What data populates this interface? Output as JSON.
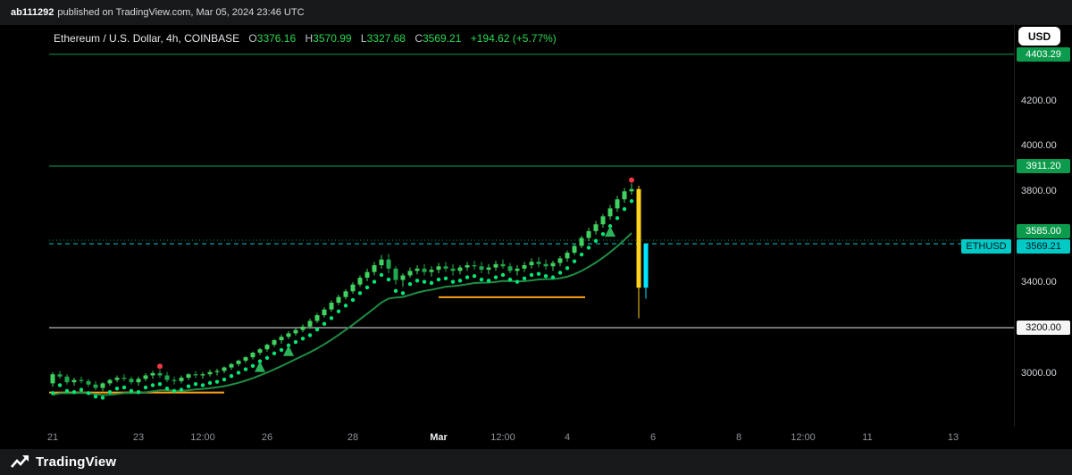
{
  "attribution": {
    "user": "ab111292",
    "text": "published on TradingView.com, Mar 05, 2024 23:46 UTC"
  },
  "header": {
    "currency_button": "USD"
  },
  "legend": {
    "symbol": "Ethereum / U.S. Dollar, 4h, COINBASE",
    "o_label": "O",
    "o": "3376.16",
    "h_label": "H",
    "h": "3570.99",
    "l_label": "L",
    "l": "3327.68",
    "c_label": "C",
    "c": "3569.21",
    "change": "+194.62 (+5.77%)"
  },
  "footer": {
    "brand": "TradingView"
  },
  "chart_data": {
    "type": "candlestick",
    "symbol": "Ethereum / U.S. Dollar",
    "ticker": "ETHUSD",
    "interval": "4h",
    "exchange": "COINBASE",
    "ohlc_display": {
      "open": 3376.16,
      "high": 3570.99,
      "low": 3327.68,
      "close": 3569.21,
      "change": 194.62,
      "change_pct": 5.77
    },
    "ylim": [
      2764,
      4532
    ],
    "colors": {
      "candle_up": "#3fd25f",
      "candle_down": "#1fa94e",
      "accent_green": "#0c9b4c",
      "accent_teal": "#00c9c6",
      "accent_yellow": "#ffd21e",
      "accent_orange": "#ff9f1a",
      "accent_red": "#f23645",
      "dot_green": "#00e676",
      "ma_green": "#1f8c44"
    },
    "candles": [
      [
        2955,
        3005,
        2940,
        2995
      ],
      [
        2995,
        3010,
        2975,
        2985
      ],
      [
        2985,
        2995,
        2950,
        2960
      ],
      [
        2960,
        2980,
        2945,
        2970
      ],
      [
        2970,
        2985,
        2955,
        2965
      ],
      [
        2965,
        2975,
        2940,
        2950
      ],
      [
        2950,
        2965,
        2925,
        2935
      ],
      [
        2935,
        2960,
        2920,
        2955
      ],
      [
        2955,
        2975,
        2945,
        2970
      ],
      [
        2970,
        2990,
        2960,
        2980
      ],
      [
        2980,
        2995,
        2965,
        2975
      ],
      [
        2975,
        2985,
        2950,
        2960
      ],
      [
        2960,
        2985,
        2945,
        2975
      ],
      [
        2975,
        3000,
        2965,
        2990
      ],
      [
        2990,
        3010,
        2975,
        3000
      ],
      [
        3000,
        3015,
        2980,
        2990
      ],
      [
        2990,
        3005,
        2960,
        2970
      ],
      [
        2970,
        2985,
        2950,
        2965
      ],
      [
        2965,
        2990,
        2955,
        2980
      ],
      [
        2980,
        3000,
        2970,
        2995
      ],
      [
        2995,
        3010,
        2980,
        2990
      ],
      [
        2990,
        3005,
        2975,
        2995
      ],
      [
        2995,
        3015,
        2985,
        3005
      ],
      [
        3005,
        3020,
        2990,
        3010
      ],
      [
        3010,
        3030,
        3000,
        3025
      ],
      [
        3025,
        3045,
        3015,
        3040
      ],
      [
        3040,
        3060,
        3030,
        3055
      ],
      [
        3055,
        3075,
        3045,
        3070
      ],
      [
        3070,
        3095,
        3060,
        3090
      ],
      [
        3090,
        3110,
        3080,
        3105
      ],
      [
        3105,
        3130,
        3095,
        3125
      ],
      [
        3125,
        3150,
        3115,
        3145
      ],
      [
        3145,
        3170,
        3130,
        3160
      ],
      [
        3160,
        3185,
        3150,
        3175
      ],
      [
        3175,
        3200,
        3165,
        3190
      ],
      [
        3190,
        3215,
        3180,
        3205
      ],
      [
        3205,
        3240,
        3195,
        3230
      ],
      [
        3230,
        3265,
        3220,
        3255
      ],
      [
        3255,
        3290,
        3245,
        3280
      ],
      [
        3280,
        3320,
        3270,
        3310
      ],
      [
        3310,
        3345,
        3300,
        3335
      ],
      [
        3335,
        3370,
        3325,
        3360
      ],
      [
        3360,
        3400,
        3350,
        3390
      ],
      [
        3390,
        3430,
        3380,
        3420
      ],
      [
        3420,
        3460,
        3405,
        3445
      ],
      [
        3445,
        3490,
        3430,
        3475
      ],
      [
        3475,
        3520,
        3460,
        3500
      ],
      [
        3500,
        3525,
        3440,
        3460
      ],
      [
        3460,
        3470,
        3390,
        3410
      ],
      [
        3410,
        3440,
        3380,
        3430
      ],
      [
        3430,
        3465,
        3420,
        3450
      ],
      [
        3450,
        3475,
        3435,
        3460
      ],
      [
        3460,
        3480,
        3430,
        3445
      ],
      [
        3445,
        3470,
        3425,
        3455
      ],
      [
        3455,
        3485,
        3440,
        3470
      ],
      [
        3470,
        3490,
        3445,
        3460
      ],
      [
        3460,
        3480,
        3430,
        3450
      ],
      [
        3450,
        3475,
        3435,
        3465
      ],
      [
        3465,
        3490,
        3450,
        3475
      ],
      [
        3475,
        3495,
        3455,
        3470
      ],
      [
        3470,
        3490,
        3440,
        3455
      ],
      [
        3455,
        3480,
        3435,
        3465
      ],
      [
        3465,
        3495,
        3450,
        3480
      ],
      [
        3480,
        3500,
        3460,
        3470
      ],
      [
        3470,
        3485,
        3440,
        3450
      ],
      [
        3450,
        3475,
        3430,
        3460
      ],
      [
        3460,
        3490,
        3445,
        3475
      ],
      [
        3475,
        3505,
        3460,
        3490
      ],
      [
        3490,
        3510,
        3465,
        3480
      ],
      [
        3480,
        3500,
        3455,
        3470
      ],
      [
        3470,
        3495,
        3450,
        3485
      ],
      [
        3485,
        3515,
        3470,
        3505
      ],
      [
        3505,
        3540,
        3490,
        3530
      ],
      [
        3530,
        3570,
        3520,
        3560
      ],
      [
        3560,
        3605,
        3550,
        3595
      ],
      [
        3595,
        3640,
        3580,
        3625
      ],
      [
        3625,
        3670,
        3610,
        3655
      ],
      [
        3655,
        3700,
        3640,
        3690
      ],
      [
        3690,
        3740,
        3675,
        3725
      ],
      [
        3725,
        3780,
        3710,
        3765
      ],
      [
        3765,
        3815,
        3750,
        3800
      ],
      [
        3800,
        3835,
        3785,
        3810
      ],
      [
        3810,
        3825,
        3242,
        3376
      ],
      [
        3376.16,
        3570.99,
        3327.68,
        3569.21
      ]
    ],
    "candle_overrides": {
      "82": "#ffd21e",
      "83": "#00e5ff"
    },
    "markers": {
      "triangles_up": [
        29,
        33,
        78
      ],
      "triangle_offset": 55,
      "red_dots": [
        15,
        81
      ],
      "red_dot_offset": 15
    },
    "indicators": {
      "trail_dots": {
        "offset": 28,
        "color": "#00e676"
      },
      "ma": {
        "period": 10,
        "source_offset": 35,
        "color": "#1f8c44"
      }
    },
    "levels": [
      {
        "price": 4403.29,
        "style": "solid",
        "color": "#0c9b4c"
      },
      {
        "price": 3911.2,
        "style": "solid",
        "color": "#0c9b4c"
      },
      {
        "price": 3585.0,
        "style": "dotted",
        "color": "#0c9b4c"
      },
      {
        "price": 3569.21,
        "style": "dashed",
        "color": "#00c9c6"
      },
      {
        "price": 3200.0,
        "style": "solid",
        "color": "#e6e6e6"
      }
    ],
    "segments": [
      {
        "price": 2915,
        "i1": 0,
        "i2": 23.5,
        "color": "#ff9f1a"
      },
      {
        "price": 3334,
        "i1": 54.5,
        "i2": 74,
        "color": "#ff9f1a"
      }
    ],
    "price_axis": {
      "labels": [
        {
          "text": "4200.00",
          "price": 4200
        },
        {
          "text": "4000.00",
          "price": 4000
        },
        {
          "text": "3800.00",
          "price": 3800
        },
        {
          "text": "3400.00",
          "price": 3400
        },
        {
          "text": "3000.00",
          "price": 3000
        }
      ],
      "badges": [
        {
          "text": "4403.29",
          "price": 4403.29,
          "bg": "#0c9b4c",
          "fg": "#ffffff"
        },
        {
          "text": "3911.20",
          "price": 3911.2,
          "bg": "#0c9b4c",
          "fg": "#ffffff"
        },
        {
          "text": "3585.00",
          "price": 3585.0,
          "bg": "#0c9b4c",
          "fg": "#ffffff",
          "dy": -10
        },
        {
          "text": "3569.21",
          "price": 3569.21,
          "bg": "#00c9c6",
          "fg": "#04191b",
          "dy": 3,
          "tag": "ETHUSD"
        },
        {
          "text": "3200.00",
          "price": 3200.0,
          "bg": "#f5f5f5",
          "fg": "#0a0a0a"
        }
      ]
    },
    "time_axis": [
      {
        "text": "21",
        "i": 0
      },
      {
        "text": "23",
        "i": 12
      },
      {
        "text": "12:00",
        "i": 21
      },
      {
        "text": "26",
        "i": 30
      },
      {
        "text": "28",
        "i": 42
      },
      {
        "text": "Mar",
        "i": 54,
        "bold": true
      },
      {
        "text": "12:00",
        "i": 63
      },
      {
        "text": "4",
        "i": 72
      },
      {
        "text": "6",
        "i": 84
      },
      {
        "text": "8",
        "i": 96
      },
      {
        "text": "12:00",
        "i": 105
      },
      {
        "text": "11",
        "i": 114
      },
      {
        "text": "13",
        "i": 126
      }
    ]
  }
}
